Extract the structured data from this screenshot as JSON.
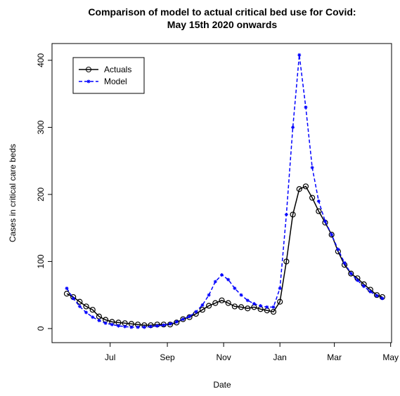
{
  "chart_data": {
    "type": "line",
    "title": "Comparison of model to actual critical bed use for Covid:",
    "subtitle": "May 15th 2020 onwards",
    "x_label": "Date",
    "y_label": "Cases in critical care beds",
    "x": [
      18397,
      18404,
      18411,
      18418,
      18425,
      18432,
      18439,
      18446,
      18453,
      18460,
      18467,
      18474,
      18481,
      18488,
      18495,
      18502,
      18509,
      18516,
      18523,
      18530,
      18537,
      18544,
      18551,
      18558,
      18565,
      18572,
      18579,
      18586,
      18593,
      18600,
      18607,
      18614,
      18621,
      18628,
      18635,
      18642,
      18649,
      18656,
      18663,
      18670,
      18677,
      18684,
      18691,
      18698,
      18705,
      18712,
      18719,
      18726,
      18733,
      18739
    ],
    "series": [
      {
        "name": "Actuals",
        "color": "#000000",
        "values": [
          52,
          47,
          40,
          33,
          28,
          18,
          13,
          10,
          9,
          8,
          7,
          6,
          5,
          5,
          6,
          6,
          6,
          9,
          14,
          17,
          22,
          28,
          34,
          38,
          42,
          38,
          33,
          32,
          30,
          32,
          29,
          27,
          25,
          40,
          100,
          170,
          208,
          212,
          195,
          175,
          158,
          140,
          115,
          95,
          82,
          75,
          66,
          58,
          50,
          47
        ]
      },
      {
        "name": "Model",
        "color": "#0000ff",
        "values": [
          60,
          45,
          33,
          24,
          17,
          12,
          8,
          6,
          4,
          3,
          2,
          2,
          2,
          3,
          4,
          5,
          7,
          10,
          14,
          18,
          25,
          35,
          50,
          70,
          80,
          73,
          60,
          50,
          42,
          37,
          34,
          32,
          32,
          60,
          170,
          300,
          408,
          330,
          240,
          190,
          160,
          140,
          118,
          98,
          82,
          72,
          63,
          55,
          49,
          45
        ]
      }
    ],
    "xlim": [
      18381,
      18749
    ],
    "ylim": [
      -21,
      425
    ],
    "xticks": [
      {
        "value": 18444,
        "label": "Jul"
      },
      {
        "value": 18506,
        "label": "Sep"
      },
      {
        "value": 18567,
        "label": "Nov"
      },
      {
        "value": 18628,
        "label": "Jan"
      },
      {
        "value": 18687,
        "label": "Mar"
      },
      {
        "value": 18748,
        "label": "May"
      }
    ],
    "yticks": [
      0,
      100,
      200,
      300,
      400
    ],
    "legend": "top-left"
  }
}
